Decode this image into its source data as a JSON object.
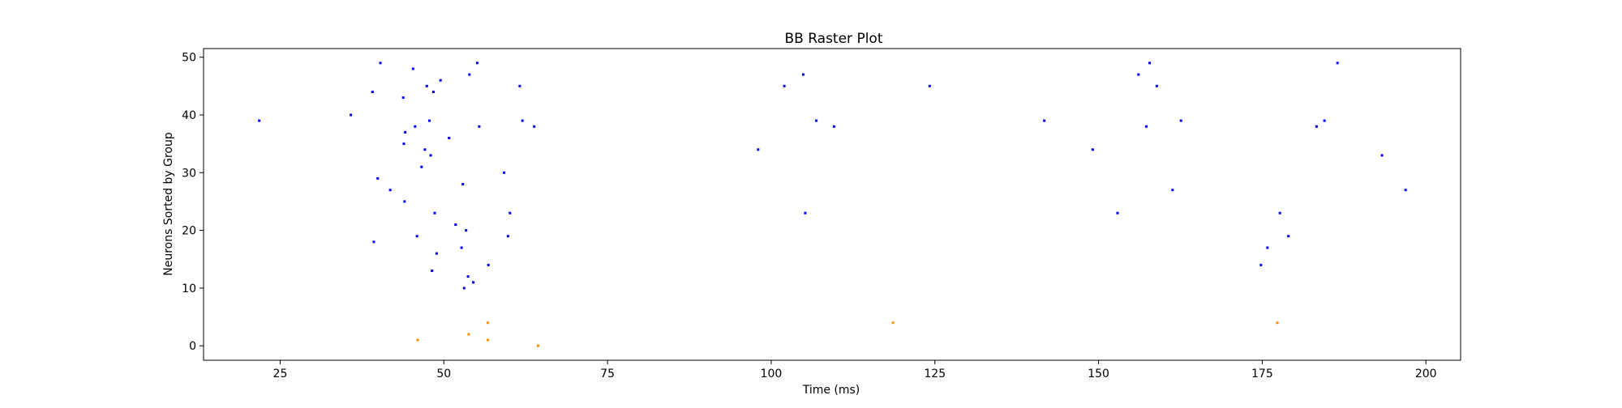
{
  "chart_data": {
    "type": "scatter",
    "title": "BB Raster Plot",
    "xlabel": "Time (ms)",
    "ylabel": "Neurons Sorted by Group",
    "xlim": [
      13.3,
      205.3
    ],
    "ylim": [
      -2.5,
      51.5
    ],
    "xticks": [
      25,
      50,
      75,
      100,
      125,
      150,
      175,
      200
    ],
    "yticks": [
      0,
      10,
      20,
      30,
      40,
      50
    ],
    "grid": false,
    "legend": "none",
    "series": [
      {
        "color": "#0000ff",
        "points": [
          [
            21.8,
            39
          ],
          [
            35.8,
            40
          ],
          [
            39.1,
            44
          ],
          [
            39.3,
            18
          ],
          [
            39.9,
            29
          ],
          [
            40.3,
            49
          ],
          [
            41.8,
            27
          ],
          [
            43.8,
            43
          ],
          [
            43.9,
            35
          ],
          [
            44.0,
            25
          ],
          [
            44.1,
            37
          ],
          [
            45.3,
            48
          ],
          [
            45.6,
            38
          ],
          [
            45.9,
            19
          ],
          [
            46.6,
            31
          ],
          [
            47.1,
            34
          ],
          [
            47.4,
            45
          ],
          [
            47.8,
            39
          ],
          [
            48.0,
            33
          ],
          [
            48.2,
            13
          ],
          [
            48.4,
            44
          ],
          [
            48.6,
            23
          ],
          [
            48.9,
            16
          ],
          [
            49.5,
            46
          ],
          [
            50.8,
            36
          ],
          [
            51.8,
            21
          ],
          [
            52.7,
            17
          ],
          [
            52.9,
            28
          ],
          [
            53.1,
            10
          ],
          [
            53.4,
            20
          ],
          [
            53.7,
            12
          ],
          [
            53.9,
            47
          ],
          [
            54.5,
            11
          ],
          [
            55.1,
            49
          ],
          [
            55.4,
            38
          ],
          [
            56.8,
            14
          ],
          [
            59.2,
            30
          ],
          [
            59.8,
            19
          ],
          [
            60.1,
            23
          ],
          [
            61.6,
            45
          ],
          [
            62.0,
            39
          ],
          [
            63.8,
            38
          ],
          [
            98.0,
            34
          ],
          [
            102.0,
            45
          ],
          [
            104.9,
            47
          ],
          [
            105.2,
            23
          ],
          [
            106.9,
            39
          ],
          [
            109.6,
            38
          ],
          [
            124.2,
            45
          ],
          [
            141.7,
            39
          ],
          [
            149.1,
            34
          ],
          [
            152.9,
            23
          ],
          [
            156.1,
            47
          ],
          [
            157.3,
            38
          ],
          [
            157.8,
            49
          ],
          [
            158.9,
            45
          ],
          [
            161.3,
            27
          ],
          [
            162.6,
            39
          ],
          [
            174.8,
            14
          ],
          [
            175.8,
            17
          ],
          [
            177.7,
            23
          ],
          [
            179.0,
            19
          ],
          [
            183.3,
            38
          ],
          [
            184.5,
            39
          ],
          [
            186.5,
            49
          ],
          [
            193.3,
            33
          ],
          [
            196.9,
            27
          ]
        ]
      },
      {
        "color": "#ff8c00",
        "points": [
          [
            46.0,
            1
          ],
          [
            53.8,
            2
          ],
          [
            56.7,
            4
          ],
          [
            56.7,
            1
          ],
          [
            64.4,
            0
          ],
          [
            118.6,
            4
          ],
          [
            177.3,
            4
          ]
        ]
      }
    ]
  }
}
